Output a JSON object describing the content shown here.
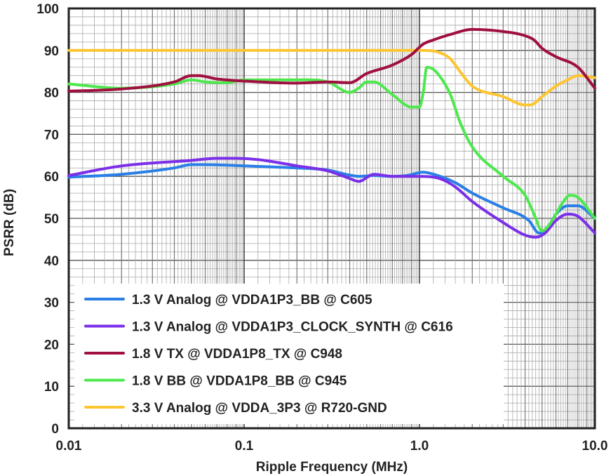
{
  "chart_data": {
    "type": "line",
    "title": "",
    "xlabel": "Ripple Frequency (MHz)",
    "ylabel": "PSRR (dB)",
    "xscale": "log",
    "xlim": [
      0.01,
      10.0
    ],
    "ylim": [
      0,
      100
    ],
    "x_ticks": [
      {
        "value": 0.01,
        "label": "0.01"
      },
      {
        "value": 0.1,
        "label": "0.1"
      },
      {
        "value": 1.0,
        "label": "1.0"
      },
      {
        "value": 10.0,
        "label": "10.0"
      }
    ],
    "y_ticks": [
      {
        "value": 0,
        "label": "0"
      },
      {
        "value": 10,
        "label": "10"
      },
      {
        "value": 20,
        "label": "20"
      },
      {
        "value": 30,
        "label": "30"
      },
      {
        "value": 40,
        "label": "40"
      },
      {
        "value": 50,
        "label": "50"
      },
      {
        "value": 60,
        "label": "60"
      },
      {
        "value": 70,
        "label": "70"
      },
      {
        "value": 80,
        "label": "80"
      },
      {
        "value": 90,
        "label": "90"
      },
      {
        "value": 100,
        "label": "100"
      }
    ],
    "grid": true,
    "legend_position": "bottom-left",
    "series": [
      {
        "name": "1.3 V Analog @ VDDA1P3_BB @ C605",
        "color": "#2a7fe6",
        "x": [
          0.01,
          0.02,
          0.04,
          0.05,
          0.06,
          0.1,
          0.2,
          0.3,
          0.4,
          0.45,
          0.55,
          0.7,
          0.85,
          1.05,
          1.25,
          1.6,
          2.0,
          3.0,
          4.2,
          4.8,
          5.2,
          6.0,
          7.0,
          8.0,
          10.0
        ],
        "y": [
          59.8,
          60.5,
          62.0,
          62.8,
          62.8,
          62.5,
          62.0,
          61.5,
          60.3,
          60.0,
          60.2,
          60.0,
          60.2,
          61.0,
          60.3,
          58.5,
          56.0,
          52.5,
          49.5,
          46.5,
          46.8,
          51.0,
          53.0,
          53.0,
          50.0
        ]
      },
      {
        "name": "1.3 V Analog @ VDDA1P3_CLOCK_SYNTH @ C616",
        "color": "#7b2fe8",
        "x": [
          0.01,
          0.02,
          0.05,
          0.07,
          0.09,
          0.12,
          0.2,
          0.3,
          0.4,
          0.45,
          0.55,
          0.7,
          1.0,
          1.3,
          1.6,
          2.0,
          3.0,
          4.0,
          4.6,
          5.2,
          6.0,
          7.0,
          8.0,
          10.0
        ],
        "y": [
          60.2,
          62.5,
          63.8,
          64.3,
          64.3,
          64.0,
          62.5,
          61.3,
          59.5,
          58.8,
          60.5,
          60.0,
          60.0,
          59.5,
          57.5,
          54.0,
          49.0,
          46.0,
          45.5,
          46.5,
          49.5,
          51.0,
          50.5,
          46.5
        ]
      },
      {
        "name": "1.8 V TX @ VDDA1P8_TX @ C948",
        "color": "#a0103f",
        "x": [
          0.01,
          0.02,
          0.04,
          0.05,
          0.055,
          0.07,
          0.1,
          0.2,
          0.3,
          0.4,
          0.5,
          0.7,
          0.9,
          1.05,
          1.2,
          1.5,
          2.0,
          3.0,
          4.0,
          4.5,
          5.0,
          6.0,
          8.0,
          10.0
        ],
        "y": [
          80.3,
          80.8,
          82.5,
          84.0,
          84.0,
          83.2,
          82.7,
          82.2,
          82.5,
          82.3,
          84.5,
          86.5,
          89.0,
          91.5,
          92.5,
          93.8,
          95.0,
          94.5,
          93.5,
          92.5,
          90.5,
          88.5,
          86.0,
          81.0
        ]
      },
      {
        "name": "1.8 V BB @ VDDA1P8_BB @ C945",
        "color": "#4ee84e",
        "x": [
          0.01,
          0.02,
          0.04,
          0.05,
          0.06,
          0.08,
          0.1,
          0.2,
          0.3,
          0.4,
          0.45,
          0.5,
          0.55,
          0.7,
          0.9,
          1.0,
          1.05,
          1.1,
          1.2,
          1.35,
          1.5,
          1.7,
          2.0,
          3.0,
          4.0,
          4.5,
          5.0,
          5.5,
          6.5,
          7.2,
          8.0,
          10.0
        ],
        "y": [
          82.0,
          81.0,
          82.0,
          83.0,
          82.5,
          82.3,
          83.0,
          83.0,
          82.5,
          80.0,
          81.0,
          82.5,
          82.5,
          79.5,
          76.5,
          76.5,
          80.0,
          86.0,
          85.5,
          83.0,
          79.5,
          73.0,
          67.0,
          60.0,
          55.5,
          51.0,
          47.0,
          48.5,
          53.5,
          55.5,
          55.0,
          50.0
        ]
      },
      {
        "name": "3.3 V Analog @ VDDA_3P3 @ R720-GND",
        "color": "#fdc530",
        "x": [
          0.01,
          0.1,
          0.5,
          1.0,
          1.3,
          1.5,
          1.7,
          2.0,
          3.0,
          4.0,
          4.3,
          5.0,
          6.0,
          7.0,
          8.0,
          10.0
        ],
        "y": [
          90.0,
          90.0,
          90.0,
          90.0,
          89.5,
          88.0,
          85.0,
          81.5,
          79.0,
          77.0,
          77.0,
          79.0,
          81.5,
          83.0,
          84.0,
          83.5
        ]
      }
    ]
  }
}
